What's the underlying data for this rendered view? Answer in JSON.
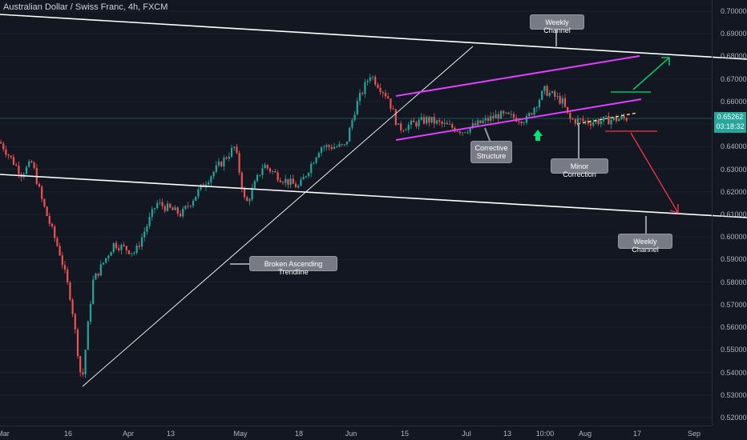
{
  "header": {
    "title": "Australian Dollar / Swiss Franc, 4h, FXCM"
  },
  "price_tag": {
    "price": "0.65262",
    "countdown": "03:18:32",
    "color": "#26a69a"
  },
  "colors": {
    "background": "#131722",
    "bull": "#26a69a",
    "bear": "#ef5350",
    "channel": "#ffffff",
    "corrective": "#e040fb",
    "up_arrow": "#00e676",
    "down_arrow": "#f23645",
    "minor": "#ffe082"
  },
  "chart_data": {
    "type": "candlestick",
    "symbol": "AUDCHF",
    "interval": "4h",
    "y_ticks": [
      "0.70000",
      "0.69000",
      "0.68000",
      "0.67000",
      "0.66000",
      "0.65000",
      "0.64000",
      "0.63000",
      "0.62000",
      "0.61000",
      "0.60000",
      "0.59000",
      "0.58000",
      "0.57000",
      "0.56000",
      "0.55000",
      "0.54000",
      "0.53000",
      "0.52000"
    ],
    "x_ticks": [
      "Mar",
      "16",
      "Apr",
      "13",
      "May",
      "18",
      "Jun",
      "15",
      "Jul",
      "13",
      "10:00",
      "Aug",
      "17",
      "Sep"
    ],
    "ylim": [
      0.52,
      0.7
    ],
    "last_price": 0.65262,
    "price_path": [
      [
        0,
        0.642
      ],
      [
        0.03,
        0.628
      ],
      [
        0.045,
        0.633
      ],
      [
        0.06,
        0.615
      ],
      [
        0.085,
        0.592
      ],
      [
        0.1,
        0.572
      ],
      [
        0.115,
        0.535
      ],
      [
        0.13,
        0.58
      ],
      [
        0.16,
        0.597
      ],
      [
        0.19,
        0.593
      ],
      [
        0.22,
        0.615
      ],
      [
        0.255,
        0.61
      ],
      [
        0.29,
        0.625
      ],
      [
        0.33,
        0.64
      ],
      [
        0.345,
        0.614
      ],
      [
        0.37,
        0.632
      ],
      [
        0.395,
        0.626
      ],
      [
        0.42,
        0.622
      ],
      [
        0.45,
        0.64
      ],
      [
        0.485,
        0.64
      ],
      [
        0.5,
        0.658
      ],
      [
        0.52,
        0.672
      ],
      [
        0.545,
        0.662
      ],
      [
        0.56,
        0.648
      ],
      [
        0.6,
        0.652
      ],
      [
        0.65,
        0.647
      ],
      [
        0.7,
        0.654
      ],
      [
        0.74,
        0.652
      ],
      [
        0.765,
        0.665
      ],
      [
        0.79,
        0.66
      ],
      [
        0.8,
        0.652
      ],
      [
        0.83,
        0.651
      ],
      [
        0.86,
        0.652
      ],
      [
        0.88,
        0.6526
      ]
    ],
    "annotations": [
      "Weekly Channel",
      "Corrective Structure",
      "Minor Correction",
      "Broken Ascending Trendline",
      "Weekly Channel"
    ]
  },
  "callouts": {
    "weekly_top": "Weekly Channel",
    "corrective_l1": "Corrective",
    "corrective_l2": "Structure",
    "minor": "Minor Correction",
    "trendline": "Broken Ascending Trendline",
    "weekly_bottom": "Weekly Channel"
  }
}
